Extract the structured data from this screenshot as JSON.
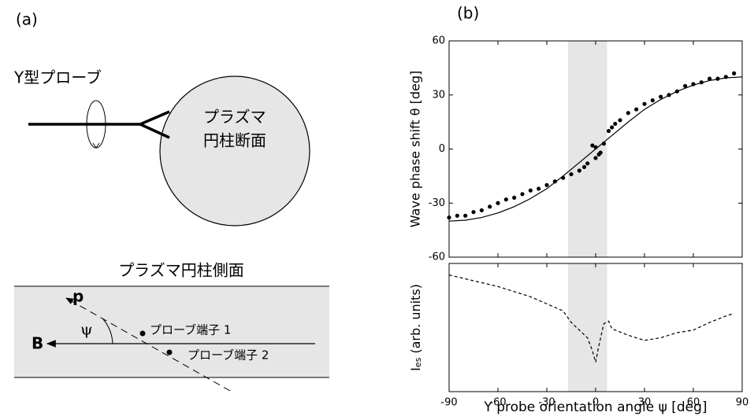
{
  "labels": {
    "a": "(a)",
    "b": "(b)"
  },
  "diagram": {
    "probe": "Y型プローブ",
    "cross_section": [
      "プラズマ",
      "円柱断面"
    ],
    "side_title": "プラズマ円柱側面",
    "p": "p",
    "psi": "ψ",
    "B": "B",
    "tip1": "プローブ端子 1",
    "tip2": "プローブ端子 2"
  },
  "chart_data": [
    {
      "type": "scatter",
      "ylabel": "Wave phase shift θ [deg]",
      "xlim": [
        -90,
        90
      ],
      "ylim": [
        -60,
        60
      ],
      "xticks": [
        -90,
        -60,
        -30,
        0,
        30,
        60,
        90
      ],
      "yticks": [
        -60,
        -30,
        0,
        30,
        60
      ],
      "highlight": {
        "xlim": [
          -17,
          7
        ],
        "color": "#e6e6e6"
      },
      "series": [
        {
          "kind": "points",
          "color": "#000000",
          "x": [
            -90,
            -85,
            -80,
            -75,
            -70,
            -65,
            -60,
            -55,
            -50,
            -45,
            -40,
            -35,
            -30,
            -25,
            -20,
            -15,
            -10,
            -7,
            -5,
            -2,
            0,
            0,
            2,
            3,
            5,
            8,
            10,
            12,
            15,
            20,
            25,
            30,
            35,
            40,
            45,
            50,
            55,
            60,
            65,
            70,
            75,
            80,
            85
          ],
          "values": [
            -38,
            -37,
            -37,
            -35,
            -34,
            -32,
            -30,
            -28,
            -27,
            -25,
            -23,
            -22,
            -20,
            -18,
            -16,
            -14,
            -12,
            -10,
            -8,
            2,
            -5,
            1,
            -3,
            -2,
            3,
            10,
            12,
            14,
            16,
            20,
            22,
            25,
            27,
            29,
            30,
            32,
            35,
            36,
            37,
            39,
            39,
            40,
            42
          ]
        },
        {
          "kind": "line",
          "color": "#000000",
          "x": [
            -90,
            -80,
            -70,
            -60,
            -50,
            -40,
            -30,
            -20,
            -10,
            0,
            10,
            20,
            30,
            40,
            50,
            60,
            70,
            80,
            90
          ],
          "values": [
            -40,
            -39.5,
            -38,
            -35.5,
            -32,
            -27.5,
            -22,
            -15,
            -7.5,
            0,
            7.5,
            15,
            22,
            27.5,
            32,
            35.5,
            38,
            39.5,
            40
          ]
        }
      ]
    },
    {
      "type": "line",
      "ylabel": [
        "I",
        "es",
        " (arb. units)"
      ],
      "xlabel": "Y probe orientation angle ψ [deg]",
      "xlim": [
        -90,
        90
      ],
      "ylim": [
        0,
        100
      ],
      "xticks": [
        -90,
        -60,
        -30,
        0,
        30,
        60,
        90
      ],
      "highlight": {
        "xlim": [
          -17,
          7
        ],
        "color": "#e6e6e6"
      },
      "dashed": true,
      "series": [
        {
          "color": "#000000",
          "x": [
            -90,
            -60,
            -40,
            -20,
            -15,
            -10,
            -5,
            -2,
            0,
            2,
            5,
            8,
            10,
            20,
            30,
            40,
            50,
            60,
            70,
            80,
            85
          ],
          "values": [
            91,
            82,
            74,
            63,
            54,
            48,
            42,
            32,
            23,
            36,
            53,
            55,
            49,
            44,
            40,
            42,
            46,
            48,
            54,
            59,
            61
          ]
        }
      ]
    }
  ]
}
